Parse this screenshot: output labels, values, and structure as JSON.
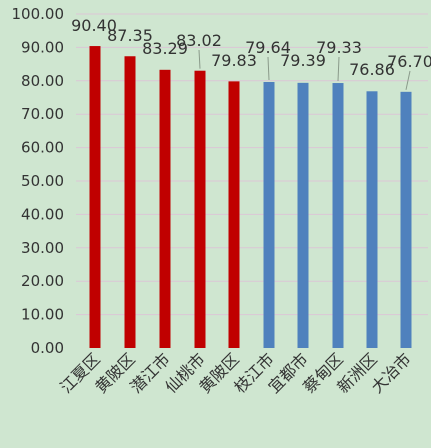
{
  "chart_data": {
    "type": "bar",
    "categories": [
      "江夏区",
      "黄陂区",
      "潜江市",
      "仙桃市",
      "黄陂区",
      "枝江市",
      "宜都市",
      "蔡甸区",
      "新洲区",
      "大冶市"
    ],
    "values": [
      90.4,
      87.35,
      83.29,
      83.02,
      79.83,
      79.64,
      79.39,
      79.33,
      76.86,
      76.7
    ],
    "value_labels": [
      "90.40",
      "87.35",
      "83.29",
      "83.02",
      "79.83",
      "79.64",
      "79.39",
      "79.33",
      "76.86",
      "76.70"
    ],
    "bar_colors": [
      "#c00000",
      "#c00000",
      "#c00000",
      "#c00000",
      "#c00000",
      "#4f81bd",
      "#4f81bd",
      "#4f81bd",
      "#4f81bd",
      "#4f81bd"
    ],
    "ylim": [
      0,
      100
    ],
    "yticks": [
      "0.00",
      "10.00",
      "20.00",
      "30.00",
      "40.00",
      "50.00",
      "60.00",
      "70.00",
      "80.00",
      "90.00",
      "100.00"
    ],
    "grid": true,
    "legend": false,
    "background_color": "#cfe6d0",
    "grid_color": "#dcc6d6"
  }
}
